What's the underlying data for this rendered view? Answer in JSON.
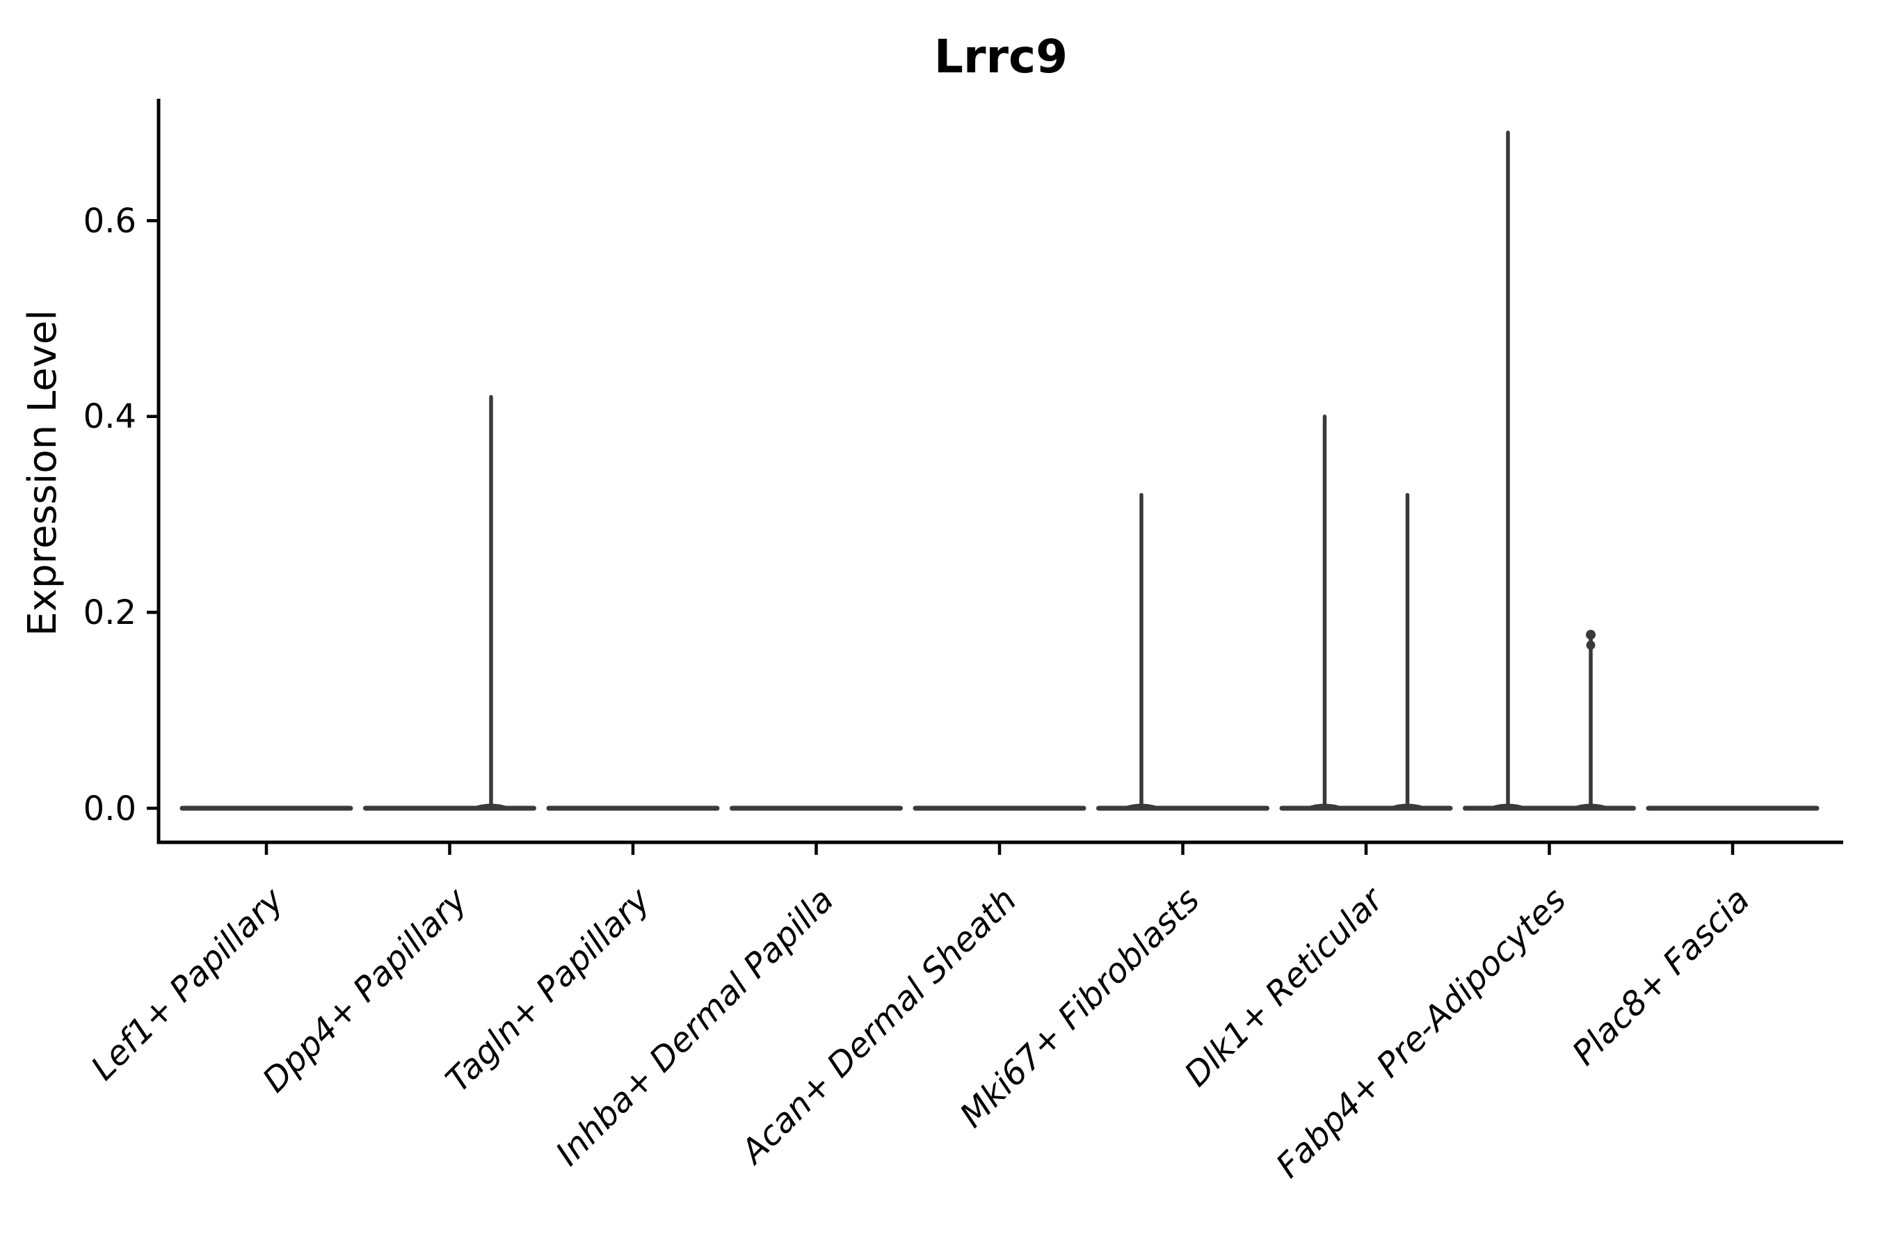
{
  "figure": {
    "background": "#ffffff"
  },
  "chart_data": {
    "type": "violin",
    "title": "Lrrc9",
    "xlabel": "",
    "ylabel": "Expression Level",
    "grid": false,
    "legend": "none",
    "ylim": [
      -0.03,
      0.72
    ],
    "ytick_values": [
      0.0,
      0.2,
      0.4,
      0.6
    ],
    "ytick_labels": [
      "0.0",
      "0.2",
      "0.4",
      "0.6"
    ],
    "categories": [
      "Lef1+ Papillary",
      "Dpp4+ Papillary",
      "Tagln+ Papillary",
      "Inhba+ Dermal Papilla",
      "Acan+ Dermal Sheath",
      "Mki67+ Fibroblasts",
      "Dlk1+ Reticular",
      "Fabp4+ Pre-Adipocytes",
      "Plac8+ Fascia"
    ],
    "violins": [
      {
        "category": "Lef1+ Papillary",
        "baseline_value": 0.0,
        "spikes": []
      },
      {
        "category": "Dpp4+ Papillary",
        "baseline_value": 0.0,
        "spikes": [
          {
            "position": "right",
            "max": 0.42
          }
        ]
      },
      {
        "category": "Tagln+ Papillary",
        "baseline_value": 0.0,
        "spikes": []
      },
      {
        "category": "Inhba+ Dermal Papilla",
        "baseline_value": 0.0,
        "spikes": []
      },
      {
        "category": "Acan+ Dermal Sheath",
        "baseline_value": 0.0,
        "spikes": []
      },
      {
        "category": "Mki67+ Fibroblasts",
        "baseline_value": 0.0,
        "spikes": [
          {
            "position": "left",
            "max": 0.32
          }
        ]
      },
      {
        "category": "Dlk1+ Reticular",
        "baseline_value": 0.0,
        "spikes": [
          {
            "position": "left",
            "max": 0.4
          },
          {
            "position": "right",
            "max": 0.32
          }
        ]
      },
      {
        "category": "Fabp4+ Pre-Adipocytes",
        "baseline_value": 0.0,
        "spikes": [
          {
            "position": "left",
            "max": 0.69
          },
          {
            "position": "right",
            "max": 0.18,
            "knob": true
          }
        ]
      },
      {
        "category": "Plac8+ Fascia",
        "baseline_value": 0.0,
        "spikes": []
      }
    ],
    "colors": {
      "violin": "#3a3a3a",
      "axis": "#000000",
      "text": "#000000"
    }
  }
}
